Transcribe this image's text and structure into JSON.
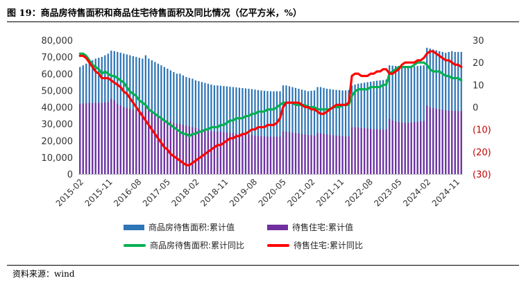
{
  "figure": {
    "title": "图 19：商品房待售面积和商品住宅待售面积及同比情况（亿平方米，%）",
    "source": "资料来源：wind"
  },
  "colors": {
    "bar_total": "#2E75B6",
    "bar_residential": "#7030A0",
    "line_total": "#00B050",
    "line_residential": "#FF0000",
    "right_axis_negative": "#C00000"
  },
  "chart_data": {
    "type": "bar",
    "x_ticks": [
      "2015-02",
      "2015-11",
      "2016-08",
      "2017-05",
      "2018-02",
      "2018-11",
      "2019-08",
      "2020-05",
      "2021-02",
      "2021-11",
      "2022-08",
      "2023-05",
      "2024-02",
      "2024-11"
    ],
    "y_left": {
      "ticks": [
        "0",
        "10,000",
        "20,000",
        "30,000",
        "40,000",
        "50,000",
        "60,000",
        "70,000",
        "80,000"
      ],
      "range": [
        0,
        80000
      ]
    },
    "y_right": {
      "ticks": [
        "30",
        "20",
        "10",
        "0",
        "(10)",
        "(20)",
        "(30)"
      ],
      "range": [
        -30,
        30
      ]
    },
    "legend": [
      "商品房待售面积:累计值",
      "待售住宅:累计值",
      "商品房待售面积:累计同比",
      "待售住宅:累计同比"
    ],
    "series_bars_total": [
      64000,
      65000,
      66000,
      67000,
      68000,
      69000,
      69500,
      70000,
      71000,
      72000,
      73800,
      73500,
      73000,
      72500,
      72000,
      71500,
      71000,
      70500,
      70000,
      69500,
      69000,
      71000,
      69000,
      68000,
      67000,
      66000,
      65000,
      64000,
      63000,
      62000,
      61000,
      60000,
      60000,
      59000,
      58000,
      57500,
      57000,
      56000,
      55500,
      55000,
      54500,
      54000,
      53500,
      53000,
      53000,
      52800,
      52600,
      52400,
      52200,
      52000,
      51800,
      51600,
      51400,
      51200,
      51000,
      50800,
      50500,
      50200,
      50000,
      49800,
      49600,
      49500,
      49500,
      49500,
      49500,
      53000,
      53000,
      52500,
      52000,
      51500,
      51000,
      50500,
      50000,
      49500,
      49800,
      50000,
      52000,
      52000,
      51500,
      51000,
      50800,
      50500,
      50300,
      50200,
      50000,
      50000,
      50200,
      53000,
      53500,
      54000,
      54300,
      54600,
      54900,
      55200,
      55500,
      55800,
      56000,
      56200,
      56500,
      65000,
      64800,
      64600,
      64400,
      64200,
      64000,
      64000,
      64200,
      64400,
      64600,
      64800,
      65000,
      75500,
      75000,
      74500,
      74000,
      73500,
      73000,
      72500,
      73000,
      73500,
      73000,
      73000,
      73000
    ],
    "series_bars_residential": [
      42000,
      42200,
      42300,
      42500,
      42500,
      42600,
      42500,
      42500,
      42800,
      43000,
      45000,
      44000,
      42000,
      41000,
      40000,
      39500,
      39000,
      38500,
      38000,
      37500,
      37000,
      41000,
      39000,
      37500,
      36000,
      35000,
      34000,
      33000,
      32000,
      31500,
      30500,
      30000,
      30000,
      29500,
      29000,
      28500,
      28000,
      27500,
      27000,
      26500,
      26000,
      25800,
      25600,
      25400,
      25500,
      25300,
      25100,
      24900,
      24700,
      24500,
      24300,
      24100,
      23900,
      23700,
      23500,
      23300,
      23000,
      22800,
      22600,
      22500,
      22400,
      22300,
      22300,
      22300,
      22400,
      25500,
      25300,
      25000,
      24700,
      24500,
      24300,
      24000,
      23700,
      23400,
      23200,
      23000,
      24500,
      24300,
      24000,
      23700,
      23400,
      23200,
      23000,
      22800,
      22600,
      22500,
      22500,
      28000,
      28000,
      27800,
      27600,
      27400,
      27200,
      27000,
      26800,
      26700,
      26600,
      26600,
      26600,
      33000,
      32000,
      31500,
      31000,
      30800,
      30600,
      30600,
      30800,
      31000,
      31200,
      31500,
      31800,
      41000,
      40000,
      39500,
      39000,
      38700,
      38400,
      38100,
      37900,
      37800,
      37700,
      37600,
      37600
    ],
    "series_line_total_yoy": [
      24,
      24,
      23,
      21,
      19,
      18,
      17,
      15,
      16,
      15,
      14,
      14,
      13,
      12,
      11,
      9,
      7,
      6,
      5,
      3,
      2,
      1,
      -1,
      -2,
      -3,
      -4,
      -5,
      -6,
      -7,
      -8,
      -9,
      -10,
      -11,
      -12,
      -12,
      -13,
      -12,
      -12,
      -11,
      -11,
      -10,
      -10,
      -9,
      -9,
      -9,
      -8,
      -8,
      -7,
      -6,
      -6,
      -5,
      -5,
      -5,
      -4,
      -4,
      -3,
      -3,
      -2,
      -2,
      -2,
      -1,
      -1,
      -1,
      0,
      1,
      2,
      2,
      2,
      2,
      1,
      1,
      1,
      1,
      0,
      0,
      0,
      -1,
      -1,
      -1,
      -1,
      -1,
      0,
      0,
      0,
      1,
      1,
      1,
      5,
      7,
      8,
      8,
      8,
      8,
      9,
      9,
      9,
      9,
      10,
      10,
      15,
      16,
      17,
      18,
      18,
      18,
      18,
      18,
      19,
      20,
      20,
      20,
      19,
      17,
      16,
      16,
      16,
      15,
      14,
      14,
      13,
      13,
      13,
      12
    ],
    "series_line_residential_yoy": [
      23,
      23,
      22,
      20,
      18,
      16,
      15,
      13,
      13,
      13,
      12,
      11,
      10,
      9,
      7,
      6,
      4,
      2,
      0,
      -2,
      -4,
      -6,
      -8,
      -10,
      -12,
      -14,
      -16,
      -18,
      -19,
      -21,
      -22,
      -23,
      -24,
      -25,
      -26,
      -26,
      -25,
      -24,
      -23,
      -22,
      -21,
      -20,
      -19,
      -18,
      -17,
      -17,
      -16,
      -15,
      -14,
      -14,
      -13,
      -13,
      -12,
      -12,
      -11,
      -10,
      -10,
      -9,
      -9,
      -9,
      -8,
      -8,
      -8,
      -7,
      -5,
      0,
      2,
      2,
      2,
      2,
      2,
      1,
      0,
      0,
      -1,
      -1,
      -2,
      -3,
      -3,
      -2,
      -1,
      0,
      1,
      1,
      1,
      1,
      2,
      14,
      15,
      15,
      14,
      14,
      14,
      15,
      15,
      16,
      16,
      17,
      17,
      15,
      15,
      16,
      17,
      19,
      20,
      20,
      20,
      20,
      21,
      21,
      22,
      24,
      25,
      25,
      24,
      23,
      22,
      21,
      21,
      20,
      19,
      19,
      18
    ]
  }
}
